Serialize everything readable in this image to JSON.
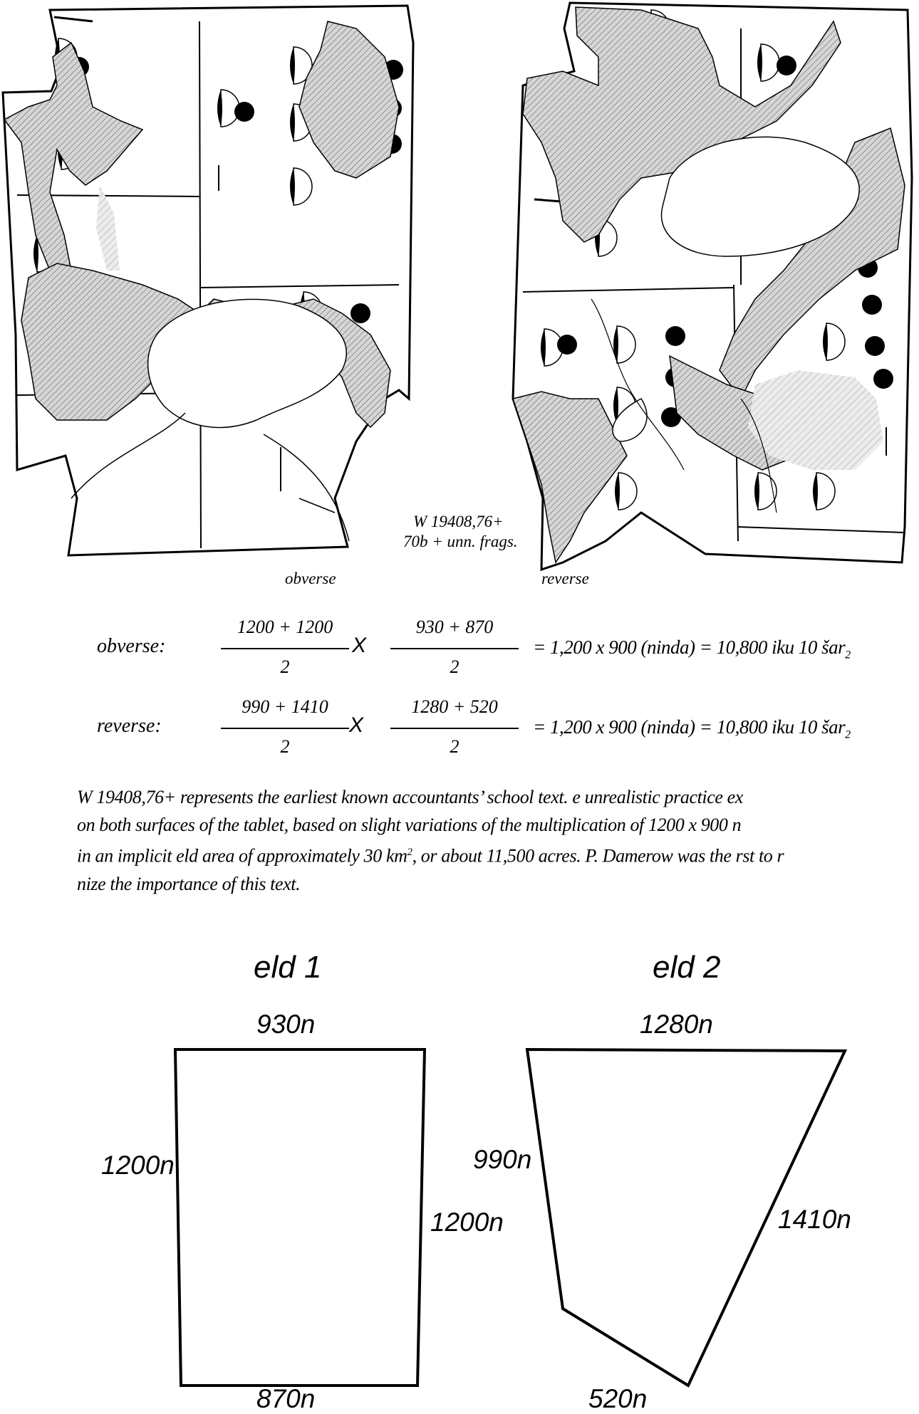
{
  "tablet": {
    "id_line1": "W 19408,76+",
    "id_line2": "70b + unn. frags.",
    "obverse_caption": "obverse",
    "reverse_caption": "reverse"
  },
  "equations": [
    {
      "label": "obverse:",
      "frac1_num": "1200 + 1200",
      "frac1_den": "2",
      "times": "X",
      "frac2_num": "930 + 870",
      "frac2_den": "2",
      "result": "= 1,200 x  900 (ninda) = 10,800 iku",
      "suffix_a": "10 šar",
      "suffix_sub": "2"
    },
    {
      "label": "reverse:",
      "frac1_num": "990 + 1410",
      "frac1_den": "2",
      "times": "X",
      "frac2_num": "1280 + 520",
      "frac2_den": "2",
      "result": "= 1,200 x  900 (ninda) = 10,800 iku",
      "suffix_a": "10 šar",
      "suffix_sub": "2"
    }
  ],
  "paragraph": {
    "line1": "W 19408,76+ represents the earliest known accountants’ school text.  e unrealistic practice ex",
    "line2": "on both surfaces of the tablet, based on slight variations of the multiplication of 1200 x 900 n",
    "line3a": "in an implicit  eld area of approximately 30 km",
    "line3_sup": "2",
    "line3b": ", or about 11,500 acres. P. Damerow was the  rst to r",
    "line4": "nize the importance of this text."
  },
  "fields": {
    "field1": {
      "title": "eld  1",
      "top": "930n",
      "left": "1200n",
      "right": "1200n",
      "bottom": "870n"
    },
    "field2": {
      "title": "eld 2",
      "top": "1280n",
      "left": "990n",
      "right": "1410n",
      "bottom": "520n"
    }
  }
}
